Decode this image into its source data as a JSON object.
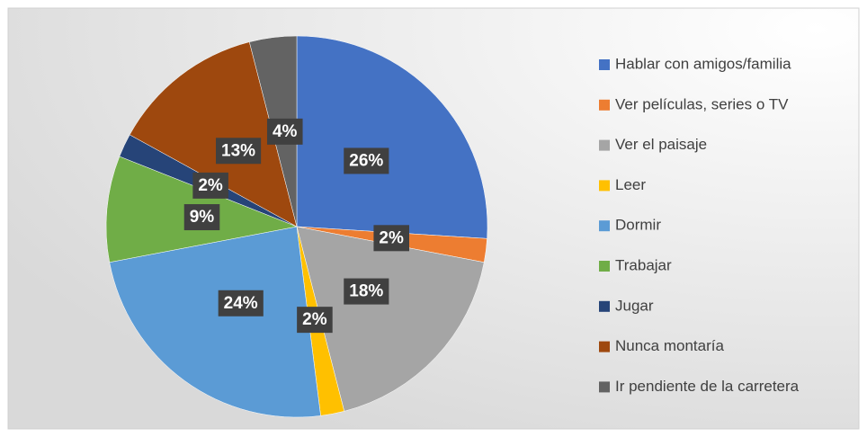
{
  "chart_data": {
    "type": "pie",
    "categories": [
      "Hablar con amigos/familia",
      "Ver películas, series o TV",
      "Ver el paisaje",
      "Leer",
      "Dormir",
      "Trabajar",
      "Jugar",
      "Nunca montaría",
      "Ir pendiente de la carretera"
    ],
    "values": [
      26,
      2,
      18,
      2,
      24,
      9,
      2,
      13,
      4
    ],
    "value_labels": [
      "26%",
      "2%",
      "18%",
      "2%",
      "24%",
      "9%",
      "2%",
      "13%",
      "4%"
    ],
    "colors": [
      "#4472c4",
      "#ed7d31",
      "#a5a5a5",
      "#ffc000",
      "#5b9bd5",
      "#70ad47",
      "#264478",
      "#9e480e",
      "#636363"
    ],
    "legend": "right"
  }
}
